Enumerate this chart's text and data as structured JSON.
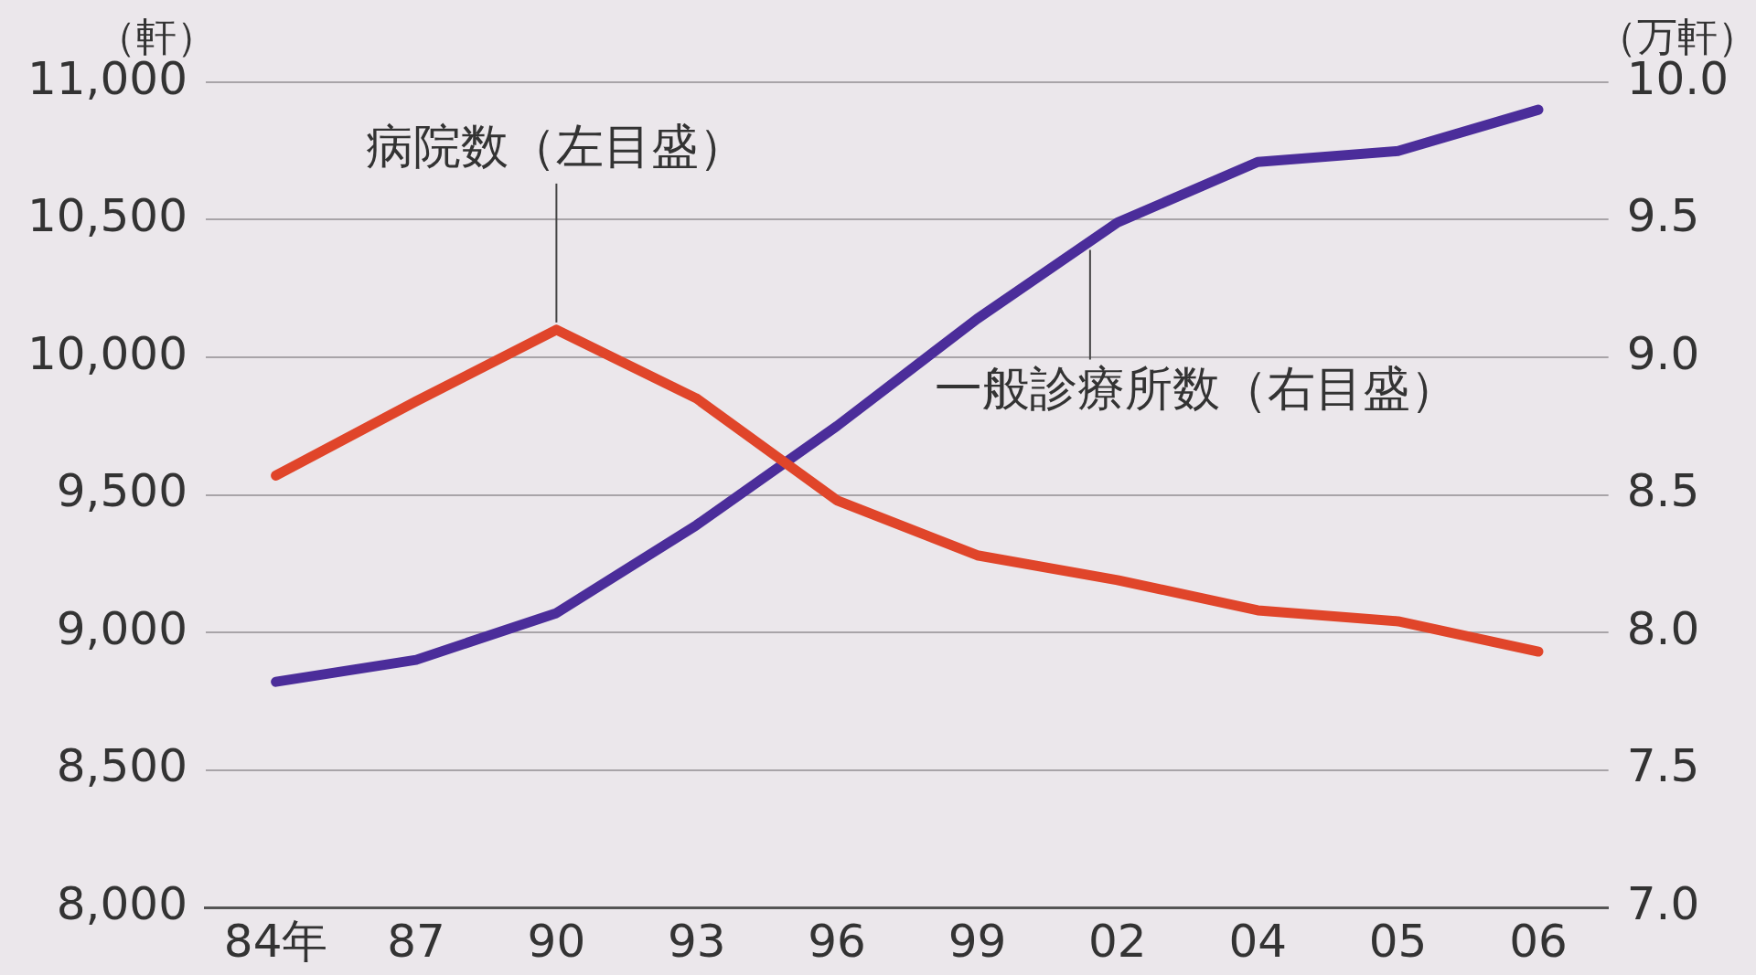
{
  "chart_data": {
    "type": "line",
    "ylabel": "（軒）",
    "y2label": "（万軒）",
    "categories": [
      "84年",
      "87",
      "90",
      "93",
      "96",
      "99",
      "02",
      "04",
      "05",
      "06"
    ],
    "series": [
      {
        "name": "病院数（左目盛）",
        "color": "#e0452a",
        "values": [
          9570,
          9840,
          10100,
          9850,
          9480,
          9280,
          9190,
          9080,
          9040,
          8930
        ]
      },
      {
        "name": "一般診療所数（右目盛）",
        "color": "#4b2d9a",
        "axis": "y2",
        "values": [
          7.82,
          7.9,
          8.07,
          8.39,
          8.75,
          9.14,
          9.49,
          9.71,
          9.75,
          9.9
        ]
      }
    ],
    "ylim": [
      8000,
      11000
    ],
    "yticks": [
      {
        "value": 8000,
        "label": "8,000"
      },
      {
        "value": 8500,
        "label": "8,500"
      },
      {
        "value": 9000,
        "label": "9,000"
      },
      {
        "value": 9500,
        "label": "9,500"
      },
      {
        "value": 10000,
        "label": "10,000"
      },
      {
        "value": 10500,
        "label": "10,500"
      },
      {
        "value": 11000,
        "label": "11,000"
      }
    ],
    "y2lim": [
      7,
      10
    ],
    "y2ticks": [
      {
        "value": 7,
        "label": "7.0"
      },
      {
        "value": 7.5,
        "label": "7.5"
      },
      {
        "value": 8,
        "label": "8.0"
      },
      {
        "value": 8.5,
        "label": "8.5"
      },
      {
        "value": 9,
        "label": "9.0"
      },
      {
        "value": 9.5,
        "label": "9.5"
      },
      {
        "value": 10,
        "label": "10.0"
      }
    ],
    "grid": "y",
    "legend": false,
    "marker": "none",
    "line_style": "solid"
  }
}
